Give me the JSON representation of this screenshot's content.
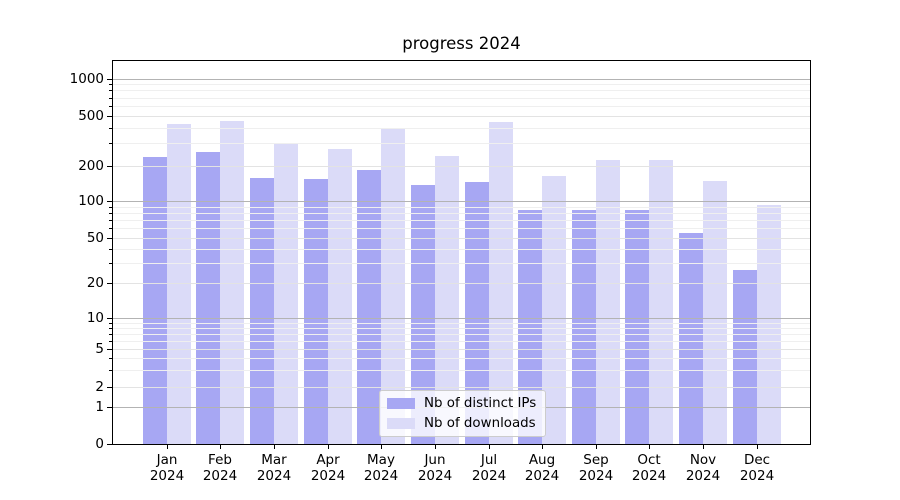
{
  "chart_data": {
    "type": "bar",
    "title": "progress 2024",
    "categories": [
      "Jan 2024",
      "Feb 2024",
      "Mar 2024",
      "Apr 2024",
      "May 2024",
      "Jun 2024",
      "Jul 2024",
      "Aug 2024",
      "Sep 2024",
      "Oct 2024",
      "Nov 2024",
      "Dec 2024"
    ],
    "series": [
      {
        "name": "Nb of distinct IPs",
        "color": "#a7a7f3",
        "values": [
          235,
          255,
          158,
          154,
          185,
          136,
          145,
          84,
          84,
          85,
          55,
          26
        ]
      },
      {
        "name": "Nb of downloads",
        "color": "#dbdbf8",
        "values": [
          430,
          455,
          305,
          270,
          395,
          240,
          445,
          163,
          220,
          220,
          148,
          93
        ]
      }
    ],
    "yaxis": {
      "scale": "symlog",
      "ticks": [
        0,
        1,
        2,
        5,
        10,
        20,
        50,
        100,
        200,
        500,
        1000
      ],
      "tick_labels": [
        "0",
        "1",
        "2",
        "5",
        "10",
        "20",
        "50",
        "100",
        "200",
        "500",
        "1000"
      ]
    },
    "xaxis": {
      "tick_labels_two_lines": true
    },
    "legend": {
      "position": "lower center"
    },
    "grid": true
  },
  "colors": {
    "background": "#ffffff",
    "text": "#000000",
    "spine": "#000000",
    "grid_major": "#b3b3b3",
    "grid_mid": "#e3e3e3",
    "grid_minor": "#efefef",
    "legend_border": "#cccccc"
  }
}
